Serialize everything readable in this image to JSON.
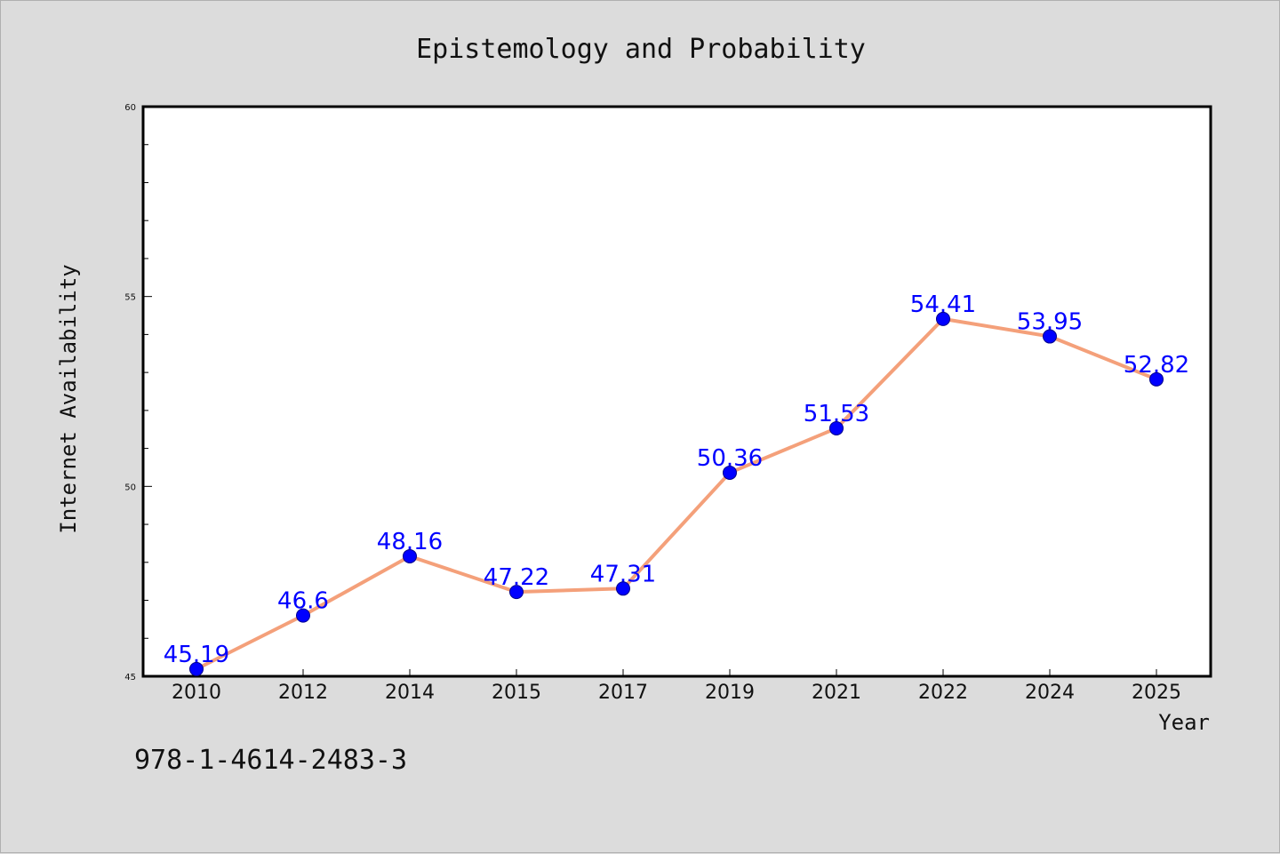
{
  "chart_data": {
    "type": "line",
    "title": "Epistemology and Probability",
    "xlabel": "Year",
    "ylabel": "Internet Availability",
    "categories": [
      "2010",
      "2012",
      "2014",
      "2015",
      "2017",
      "2019",
      "2021",
      "2022",
      "2024",
      "2025"
    ],
    "values": [
      45.19,
      46.6,
      48.16,
      47.22,
      47.31,
      50.36,
      51.53,
      54.41,
      53.95,
      52.82
    ],
    "data_labels": [
      "45.19",
      "46.6",
      "48.16",
      "47.22",
      "47.31",
      "50.36",
      "51.53",
      "54.41",
      "53.95",
      "52.82"
    ],
    "ylim": [
      45,
      60
    ],
    "yticks": [
      "45",
      "50",
      "55",
      "60"
    ],
    "line_color": "#f4a07a",
    "marker_color": "#0000ff",
    "label_color": "#0000ff",
    "grid": false,
    "legend": false
  },
  "footer": {
    "isbn": "978-1-4614-2483-3"
  }
}
